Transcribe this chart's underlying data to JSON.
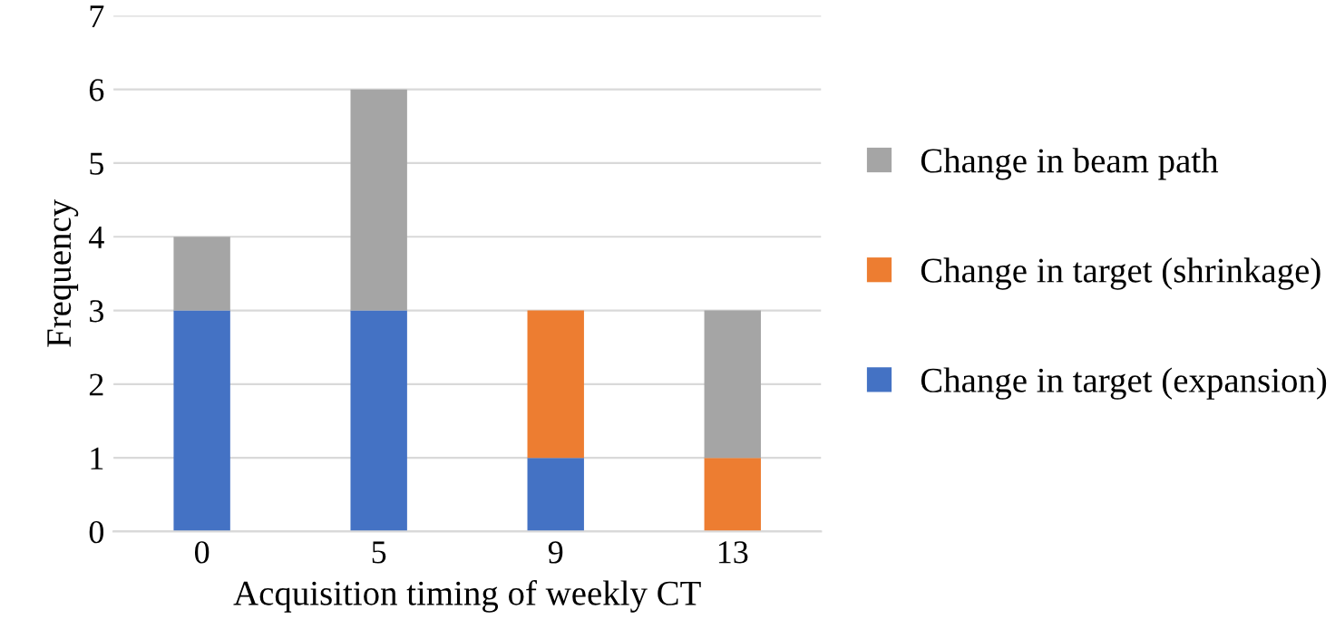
{
  "chart_data": {
    "type": "bar",
    "stacked": true,
    "xlabel": "Acquisition timing of weekly CT",
    "ylabel": "Frequency",
    "categories": [
      "0",
      "5",
      "9",
      "13"
    ],
    "series": [
      {
        "name": "Change in target (expansion)",
        "color": "#4472c4",
        "values": [
          3,
          3,
          1,
          null
        ]
      },
      {
        "name": "Change in target (shrinkage)",
        "color": "#ed7d31",
        "values": [
          null,
          null,
          2,
          1
        ]
      },
      {
        "name": "Change in beam path",
        "color": "#a5a5a5",
        "values": [
          1,
          3,
          null,
          2
        ]
      }
    ],
    "ylim": [
      0,
      7
    ],
    "yticks": [
      0,
      1,
      2,
      3,
      4,
      5,
      6,
      7
    ],
    "grid": "y",
    "legend": "right"
  }
}
